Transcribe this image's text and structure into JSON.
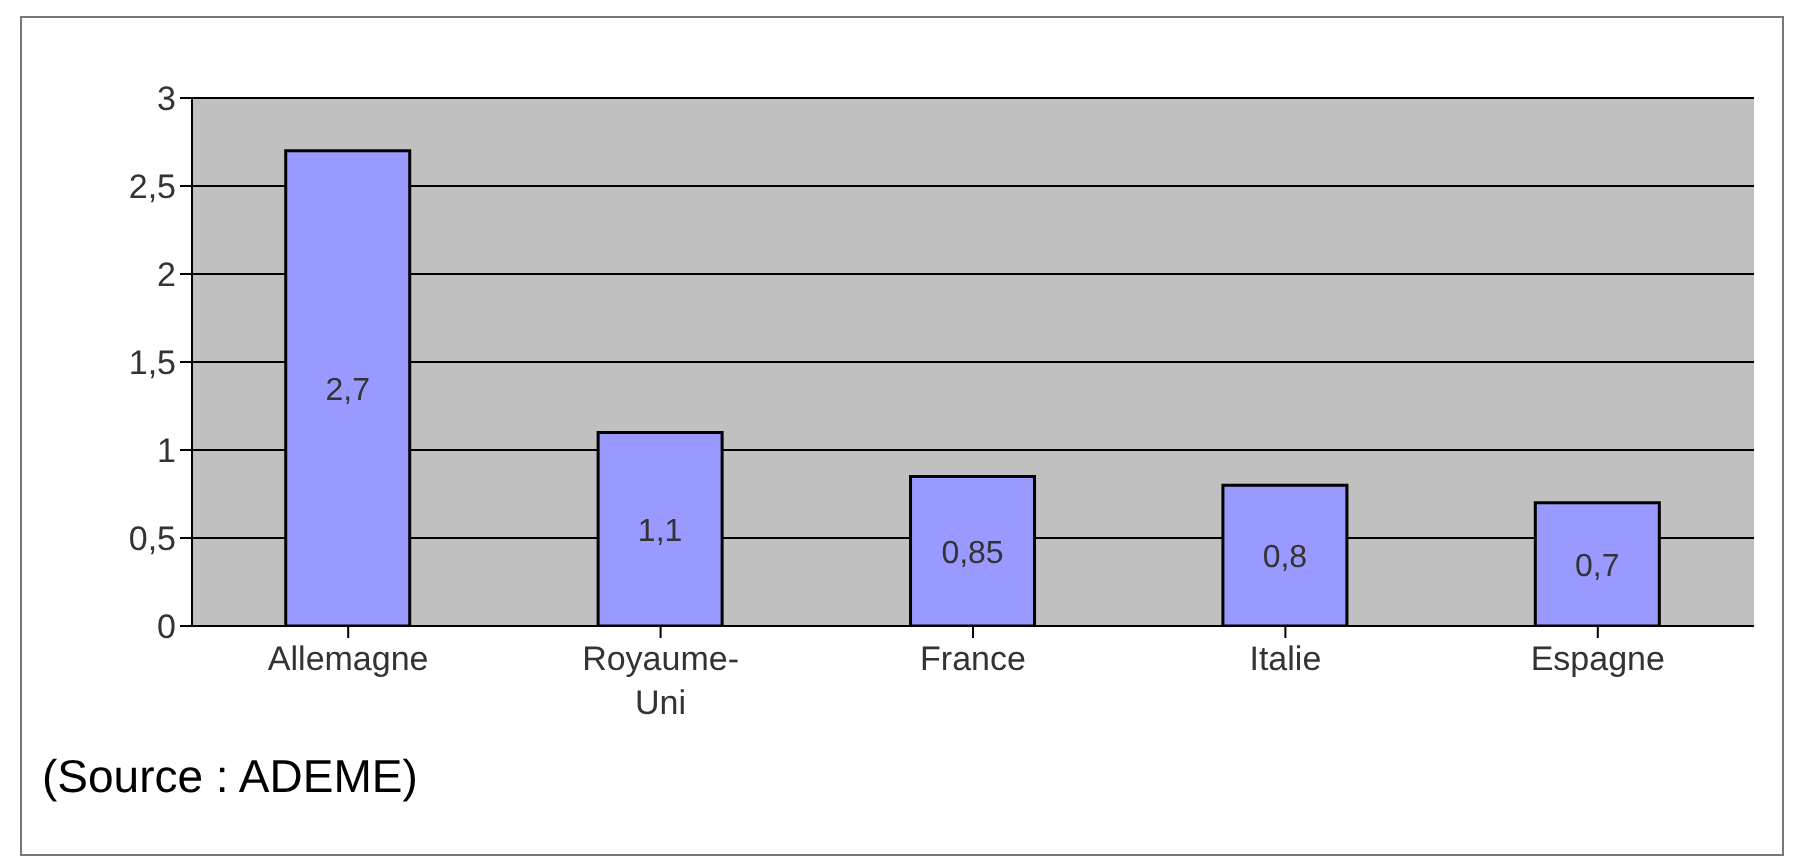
{
  "chart_data": {
    "type": "bar",
    "categories": [
      "Allemagne",
      "Royaume-Uni",
      "France",
      "Italie",
      "Espagne"
    ],
    "values": [
      2.7,
      1.1,
      0.85,
      0.8,
      0.7
    ],
    "value_labels": [
      "2,7",
      "1,1",
      "0,85",
      "0,8",
      "0,7"
    ],
    "color": "#9999ff",
    "ylim": [
      0,
      3
    ],
    "yticks": [
      0,
      {
        "value": 0.5,
        "label": "0,5"
      },
      1,
      {
        "value": 1.5,
        "label": "1,5"
      },
      2,
      {
        "value": 2.5,
        "label": "2,5"
      },
      3
    ],
    "grid": "y",
    "annotations": [
      "(Source : ADEME)"
    ]
  }
}
